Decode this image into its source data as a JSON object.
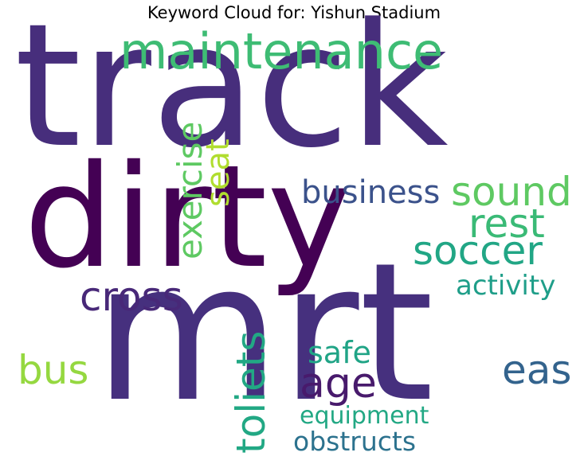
{
  "title": "Keyword Cloud for: Yishun Stadium",
  "words": [
    {
      "key": "track",
      "text": "track",
      "color": "#472e7c",
      "orientation": "horizontal",
      "relative_size": 1.0
    },
    {
      "key": "mrt",
      "text": "mrt",
      "color": "#46307e",
      "orientation": "horizontal",
      "relative_size": 1.0
    },
    {
      "key": "dirty",
      "text": "dirty",
      "color": "#440154",
      "orientation": "horizontal",
      "relative_size": 0.72
    },
    {
      "key": "maintenance",
      "text": "maintenance",
      "color": "#3ebc74",
      "orientation": "horizontal",
      "relative_size": 0.22
    },
    {
      "key": "exercise",
      "text": "exercise",
      "color": "#5ec962",
      "orientation": "vertical",
      "relative_size": 0.13
    },
    {
      "key": "seat",
      "text": "seat",
      "color": "#b0dd2f",
      "orientation": "vertical",
      "relative_size": 0.13
    },
    {
      "key": "business",
      "text": "business",
      "color": "#3b528b",
      "orientation": "horizontal",
      "relative_size": 0.13
    },
    {
      "key": "sound",
      "text": "sound",
      "color": "#5ec962",
      "orientation": "horizontal",
      "relative_size": 0.15
    },
    {
      "key": "rest",
      "text": "rest",
      "color": "#3aba76",
      "orientation": "horizontal",
      "relative_size": 0.15
    },
    {
      "key": "soccer",
      "text": "soccer",
      "color": "#21a685",
      "orientation": "horizontal",
      "relative_size": 0.15
    },
    {
      "key": "cross",
      "text": "cross",
      "color": "#482878",
      "orientation": "horizontal",
      "relative_size": 0.15
    },
    {
      "key": "toliets",
      "text": "toliets",
      "color": "#22a884",
      "orientation": "vertical",
      "relative_size": 0.15
    },
    {
      "key": "activity",
      "text": "activity",
      "color": "#1f9e89",
      "orientation": "horizontal",
      "relative_size": 0.1
    },
    {
      "key": "bus",
      "text": "bus",
      "color": "#95d840",
      "orientation": "horizontal",
      "relative_size": 0.15
    },
    {
      "key": "safe",
      "text": "safe",
      "color": "#20a486",
      "orientation": "horizontal",
      "relative_size": 0.12
    },
    {
      "key": "age",
      "text": "age",
      "color": "#481a6c",
      "orientation": "horizontal",
      "relative_size": 0.15
    },
    {
      "key": "eas",
      "text": "eas",
      "color": "#33638d",
      "orientation": "horizontal",
      "relative_size": 0.15
    },
    {
      "key": "equipment",
      "text": "equipment",
      "color": "#22a884",
      "orientation": "horizontal",
      "relative_size": 0.1
    },
    {
      "key": "obstructs",
      "text": "obstructs",
      "color": "#2c728e",
      "orientation": "horizontal",
      "relative_size": 0.11
    }
  ]
}
